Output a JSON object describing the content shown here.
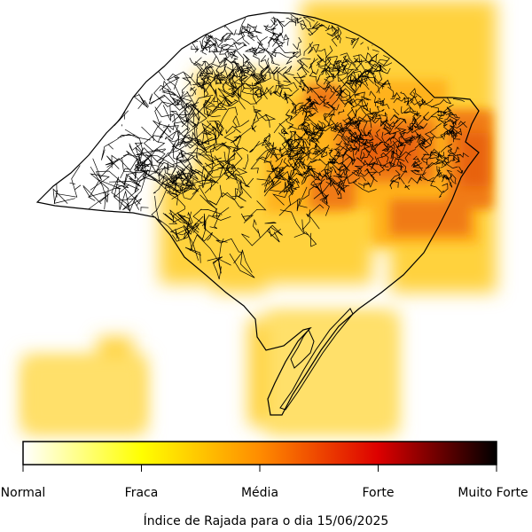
{
  "map": {
    "region": "Rio Grande do Sul",
    "shading_scale": [
      "#ffffff",
      "#fff27a",
      "#ffd23c",
      "#ff9a1a",
      "#e8620a"
    ],
    "boundary_color": "#000000"
  },
  "colorbar": {
    "stops": [
      {
        "pos": 0.0,
        "color": "#ffffff"
      },
      {
        "pos": 0.25,
        "color": "#ffff00"
      },
      {
        "pos": 0.5,
        "color": "#ff8c00"
      },
      {
        "pos": 0.75,
        "color": "#dd0000"
      },
      {
        "pos": 1.0,
        "color": "#000000"
      }
    ],
    "ticks": [
      {
        "label": "Normal",
        "value": 0
      },
      {
        "label": "Fraca",
        "value": 0.25
      },
      {
        "label": "Média",
        "value": 0.5
      },
      {
        "label": "Forte",
        "value": 0.75
      },
      {
        "label": "Muito Forte",
        "value": 1.0
      }
    ]
  },
  "caption": "Índice de Rajada para o dia 15/06/2025"
}
